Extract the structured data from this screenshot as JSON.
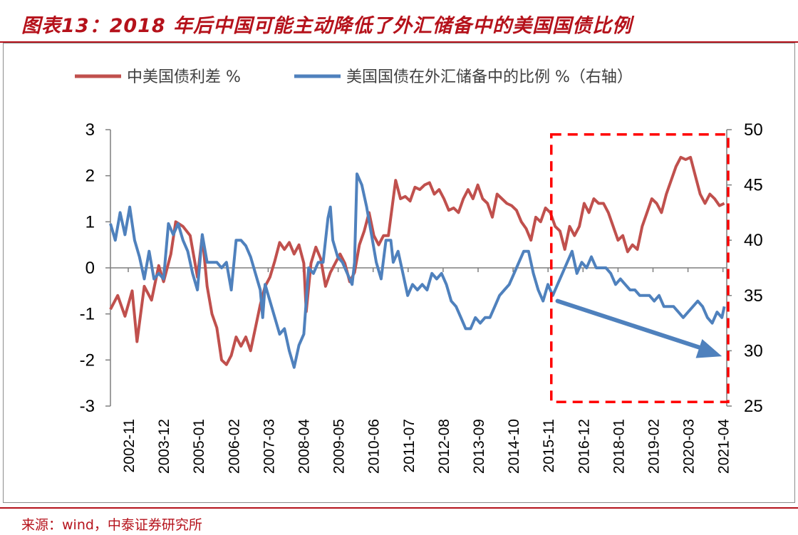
{
  "title": "图表13：2018 年后中国可能主动降低了外汇储备中的美国国债比例",
  "source": "来源：wind，中泰证券研究所",
  "colors": {
    "series1": "#c0504d",
    "series2": "#4f81bd",
    "annotation": "#ff0000",
    "arrow": "#4f81bd"
  },
  "chart_data": {
    "type": "line",
    "x_tick_labels": [
      "2002-11",
      "2003-12",
      "2005-01",
      "2006-02",
      "2007-03",
      "2008-04",
      "2009-05",
      "2010-06",
      "2011-07",
      "2012-08",
      "2013-09",
      "2014-10",
      "2015-11",
      "2016-12",
      "2018-01",
      "2019-02",
      "2020-03",
      "2021-04"
    ],
    "x_range": [
      "2002-11",
      "2021-09"
    ],
    "y_left": {
      "min": -3,
      "max": 3,
      "ticks": [
        3,
        2,
        1,
        0,
        -1,
        -2,
        -3
      ]
    },
    "y_right": {
      "min": 25,
      "max": 50,
      "ticks": [
        50,
        45,
        40,
        35,
        30,
        25
      ]
    },
    "legend": {
      "position": "top",
      "labels": [
        "中美国债利差 %",
        "美国国债在外汇储备中的比例 %（右轴）"
      ]
    },
    "series": [
      {
        "name": "中美国债利差 %",
        "axis": "left",
        "points": [
          [
            0,
            -0.9
          ],
          [
            3,
            -0.6
          ],
          [
            6,
            -1.05
          ],
          [
            9,
            -0.5
          ],
          [
            11,
            -1.6
          ],
          [
            14,
            -0.4
          ],
          [
            17,
            -0.7
          ],
          [
            20,
            0.05
          ],
          [
            22,
            -0.3
          ],
          [
            25,
            0.3
          ],
          [
            27,
            1.0
          ],
          [
            30,
            0.9
          ],
          [
            33,
            0.7
          ],
          [
            35,
            0.1
          ],
          [
            36,
            -0.2
          ],
          [
            38,
            0.7
          ],
          [
            40,
            -0.4
          ],
          [
            42,
            -1.0
          ],
          [
            44,
            -1.3
          ],
          [
            46,
            -2.0
          ],
          [
            48,
            -2.1
          ],
          [
            50,
            -1.9
          ],
          [
            52,
            -1.5
          ],
          [
            54,
            -1.7
          ],
          [
            56,
            -1.5
          ],
          [
            58,
            -1.8
          ],
          [
            60,
            -1.3
          ],
          [
            62,
            -0.8
          ],
          [
            64,
            -0.4
          ],
          [
            66,
            -0.2
          ],
          [
            68,
            0.15
          ],
          [
            70,
            0.55
          ],
          [
            72,
            0.4
          ],
          [
            74,
            0.55
          ],
          [
            76,
            0.3
          ],
          [
            78,
            0.5
          ],
          [
            80,
            0.1
          ],
          [
            81,
            -0.95
          ],
          [
            83,
            0.1
          ],
          [
            85,
            0.45
          ],
          [
            87,
            0.2
          ],
          [
            89,
            -0.4
          ],
          [
            91,
            -0.1
          ],
          [
            93,
            0.1
          ],
          [
            95,
            0.3
          ],
          [
            97,
            0.1
          ],
          [
            99,
            -0.3
          ],
          [
            101,
            -0.1
          ],
          [
            103,
            0.5
          ],
          [
            105,
            0.8
          ],
          [
            107,
            1.2
          ],
          [
            109,
            0.7
          ],
          [
            111,
            0.5
          ],
          [
            113,
            0.7
          ],
          [
            115,
            0.7
          ],
          [
            117,
            1.5
          ],
          [
            118,
            1.9
          ],
          [
            120,
            1.5
          ],
          [
            122,
            1.55
          ],
          [
            124,
            1.45
          ],
          [
            126,
            1.75
          ],
          [
            128,
            1.7
          ],
          [
            130,
            1.8
          ],
          [
            132,
            1.85
          ],
          [
            134,
            1.6
          ],
          [
            136,
            1.7
          ],
          [
            138,
            1.5
          ],
          [
            140,
            1.25
          ],
          [
            142,
            1.3
          ],
          [
            144,
            1.2
          ],
          [
            146,
            1.5
          ],
          [
            148,
            1.7
          ],
          [
            150,
            1.5
          ],
          [
            152,
            1.8
          ],
          [
            154,
            1.5
          ],
          [
            156,
            1.4
          ],
          [
            158,
            1.1
          ],
          [
            160,
            1.6
          ],
          [
            162,
            1.5
          ],
          [
            164,
            1.4
          ],
          [
            166,
            1.35
          ],
          [
            168,
            1.25
          ],
          [
            170,
            1.0
          ],
          [
            172,
            0.85
          ],
          [
            174,
            0.6
          ],
          [
            176,
            1.1
          ],
          [
            178,
            1.0
          ],
          [
            180,
            1.3
          ],
          [
            182,
            1.2
          ],
          [
            184,
            0.9
          ],
          [
            186,
            0.8
          ],
          [
            188,
            0.4
          ],
          [
            190,
            0.9
          ],
          [
            192,
            0.7
          ],
          [
            194,
            0.9
          ],
          [
            196,
            1.4
          ],
          [
            198,
            1.2
          ],
          [
            200,
            1.5
          ],
          [
            202,
            1.4
          ],
          [
            204,
            1.4
          ],
          [
            206,
            1.2
          ],
          [
            208,
            0.9
          ],
          [
            210,
            0.6
          ],
          [
            212,
            0.7
          ],
          [
            214,
            0.35
          ],
          [
            216,
            0.5
          ],
          [
            218,
            0.4
          ],
          [
            220,
            0.9
          ],
          [
            222,
            1.2
          ],
          [
            224,
            1.5
          ],
          [
            226,
            1.4
          ],
          [
            228,
            1.2
          ],
          [
            230,
            1.6
          ],
          [
            232,
            1.9
          ],
          [
            234,
            2.2
          ],
          [
            236,
            2.4
          ],
          [
            238,
            2.35
          ],
          [
            240,
            2.4
          ],
          [
            242,
            2.0
          ],
          [
            244,
            1.6
          ],
          [
            246,
            1.4
          ],
          [
            248,
            1.6
          ],
          [
            250,
            1.5
          ],
          [
            252,
            1.35
          ],
          [
            254,
            1.4
          ]
        ]
      },
      {
        "name": "美国国债在外汇储备中的比例 %（右轴）",
        "axis": "right",
        "points": [
          [
            0,
            41.5
          ],
          [
            2,
            40
          ],
          [
            4,
            42.5
          ],
          [
            6,
            40.5
          ],
          [
            8,
            43
          ],
          [
            10,
            40
          ],
          [
            12,
            38.5
          ],
          [
            14,
            36.5
          ],
          [
            16,
            39
          ],
          [
            18,
            36.5
          ],
          [
            20,
            37
          ],
          [
            22,
            36.5
          ],
          [
            24,
            41.5
          ],
          [
            26,
            40.5
          ],
          [
            28,
            41.5
          ],
          [
            30,
            40
          ],
          [
            32,
            39
          ],
          [
            34,
            37
          ],
          [
            36,
            35.5
          ],
          [
            38,
            40.5
          ],
          [
            40,
            38
          ],
          [
            42,
            38
          ],
          [
            44,
            38
          ],
          [
            46,
            37.5
          ],
          [
            48,
            38
          ],
          [
            50,
            35.5
          ],
          [
            52,
            40
          ],
          [
            54,
            40
          ],
          [
            56,
            39.5
          ],
          [
            58,
            38.5
          ],
          [
            60,
            37
          ],
          [
            62,
            35.5
          ],
          [
            63,
            33
          ],
          [
            64,
            36
          ],
          [
            66,
            34.5
          ],
          [
            68,
            33
          ],
          [
            70,
            31.5
          ],
          [
            72,
            32
          ],
          [
            74,
            30
          ],
          [
            76,
            28.5
          ],
          [
            78,
            30.5
          ],
          [
            80,
            31.5
          ],
          [
            82,
            37.5
          ],
          [
            84,
            37
          ],
          [
            86,
            38
          ],
          [
            88,
            38
          ],
          [
            90,
            42
          ],
          [
            91,
            43
          ],
          [
            92,
            40
          ],
          [
            94,
            38.5
          ],
          [
            96,
            38
          ],
          [
            98,
            37
          ],
          [
            100,
            36
          ],
          [
            101,
            38
          ],
          [
            102,
            46
          ],
          [
            104,
            45
          ],
          [
            106,
            43
          ],
          [
            108,
            40.5
          ],
          [
            110,
            38
          ],
          [
            112,
            36.5
          ],
          [
            114,
            40
          ],
          [
            116,
            40
          ],
          [
            117,
            38
          ],
          [
            119,
            39
          ],
          [
            121,
            37
          ],
          [
            123,
            35
          ],
          [
            125,
            36
          ],
          [
            127,
            35.5
          ],
          [
            129,
            36
          ],
          [
            131,
            35.5
          ],
          [
            133,
            37
          ],
          [
            135,
            36.5
          ],
          [
            137,
            37
          ],
          [
            139,
            36
          ],
          [
            141,
            34.5
          ],
          [
            143,
            34
          ],
          [
            145,
            33
          ],
          [
            147,
            32
          ],
          [
            149,
            32
          ],
          [
            151,
            33
          ],
          [
            153,
            32.5
          ],
          [
            155,
            33
          ],
          [
            157,
            33
          ],
          [
            159,
            34
          ],
          [
            161,
            35
          ],
          [
            163,
            35.5
          ],
          [
            165,
            36
          ],
          [
            167,
            37
          ],
          [
            169,
            38
          ],
          [
            171,
            39
          ],
          [
            173,
            39
          ],
          [
            175,
            37
          ],
          [
            177,
            35.5
          ],
          [
            179,
            34.5
          ],
          [
            181,
            36
          ],
          [
            183,
            35
          ],
          [
            185,
            36
          ],
          [
            187,
            37
          ],
          [
            189,
            38
          ],
          [
            191,
            39
          ],
          [
            193,
            37
          ],
          [
            195,
            38
          ],
          [
            197,
            37.5
          ],
          [
            199,
            38.5
          ],
          [
            201,
            37.5
          ],
          [
            203,
            37.5
          ],
          [
            205,
            37.5
          ],
          [
            207,
            37
          ],
          [
            209,
            36
          ],
          [
            211,
            36.5
          ],
          [
            213,
            36
          ],
          [
            215,
            35.5
          ],
          [
            217,
            35.5
          ],
          [
            219,
            35
          ],
          [
            221,
            35
          ],
          [
            223,
            35
          ],
          [
            225,
            34.5
          ],
          [
            227,
            35
          ],
          [
            229,
            34
          ],
          [
            231,
            34
          ],
          [
            233,
            34
          ],
          [
            235,
            33.5
          ],
          [
            237,
            33
          ],
          [
            239,
            33.5
          ],
          [
            241,
            34
          ],
          [
            243,
            34.5
          ],
          [
            245,
            34
          ],
          [
            247,
            33
          ],
          [
            249,
            32.5
          ],
          [
            251,
            33.5
          ],
          [
            253,
            33
          ],
          [
            254,
            34
          ]
        ]
      }
    ],
    "annotations": [
      {
        "type": "dashed-box",
        "x_from": 183,
        "x_to": 255,
        "y_from_right": 25.5,
        "y_to_right": 49.5
      },
      {
        "type": "arrow",
        "from": [
          185,
          34.5
        ],
        "to": [
          253,
          29.5
        ],
        "axis": "right"
      }
    ]
  }
}
